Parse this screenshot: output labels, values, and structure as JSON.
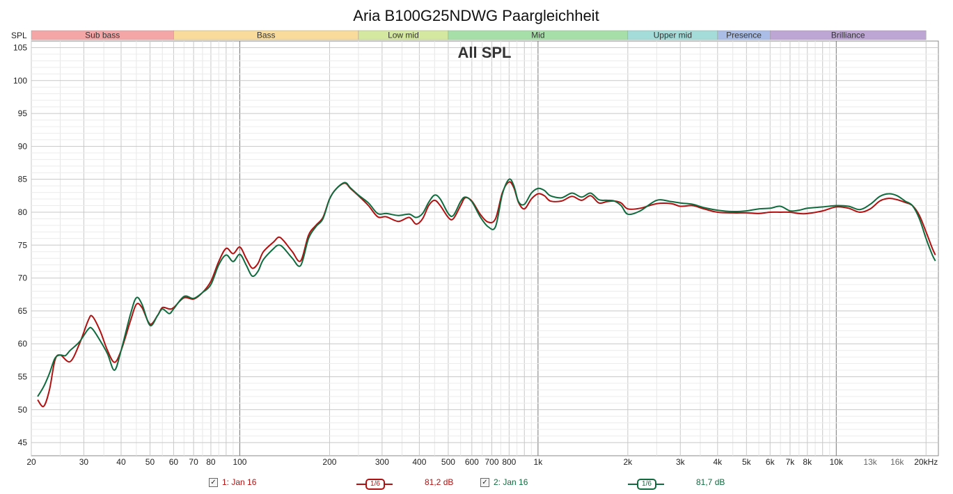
{
  "window": {
    "title": "Aria B100G25NDWG Paargleichheit"
  },
  "chart_data": {
    "type": "line",
    "title": "Aria B100G25NDWG Paargleichheit",
    "overlay_title": "All SPL",
    "ylabel": "SPL",
    "xscale": "log",
    "xlim": [
      20,
      22000
    ],
    "ylim": [
      43,
      106
    ],
    "y_ticks": [
      45,
      50,
      55,
      60,
      65,
      70,
      75,
      80,
      85,
      90,
      95,
      100,
      105
    ],
    "x_ticks": [
      {
        "v": 20,
        "label": "20"
      },
      {
        "v": 30,
        "label": "30"
      },
      {
        "v": 40,
        "label": "40"
      },
      {
        "v": 50,
        "label": "50"
      },
      {
        "v": 60,
        "label": "60"
      },
      {
        "v": 70,
        "label": "70"
      },
      {
        "v": 80,
        "label": "80"
      },
      {
        "v": 100,
        "label": "100"
      },
      {
        "v": 200,
        "label": "200"
      },
      {
        "v": 300,
        "label": "300"
      },
      {
        "v": 400,
        "label": "400"
      },
      {
        "v": 500,
        "label": "500"
      },
      {
        "v": 600,
        "label": "600"
      },
      {
        "v": 700,
        "label": "700"
      },
      {
        "v": 800,
        "label": "800"
      },
      {
        "v": 1000,
        "label": "1k"
      },
      {
        "v": 2000,
        "label": "2k"
      },
      {
        "v": 3000,
        "label": "3k"
      },
      {
        "v": 4000,
        "label": "4k"
      },
      {
        "v": 5000,
        "label": "5k"
      },
      {
        "v": 6000,
        "label": "6k"
      },
      {
        "v": 7000,
        "label": "7k"
      },
      {
        "v": 8000,
        "label": "8k"
      },
      {
        "v": 10000,
        "label": "10k"
      },
      {
        "v": 13000,
        "label": "13k",
        "minor": true
      },
      {
        "v": 16000,
        "label": "16k",
        "minor": true
      },
      {
        "v": 20000,
        "label": "20kHz"
      }
    ],
    "bands": [
      {
        "name": "Sub bass",
        "from": 20,
        "to": 60,
        "color": "#f4a6a6"
      },
      {
        "name": "Bass",
        "from": 60,
        "to": 250,
        "color": "#f9dc9b"
      },
      {
        "name": "Low mid",
        "from": 250,
        "to": 500,
        "color": "#d5e8a0"
      },
      {
        "name": "Mid",
        "from": 500,
        "to": 2000,
        "color": "#a6e0a8"
      },
      {
        "name": "Upper mid",
        "from": 2000,
        "to": 4000,
        "color": "#a3dcd8"
      },
      {
        "name": "Presence",
        "from": 4000,
        "to": 6000,
        "color": "#a9bde6"
      },
      {
        "name": "Brilliance",
        "from": 6000,
        "to": 20000,
        "color": "#bda6d4"
      }
    ],
    "grid": true,
    "series": [
      {
        "name": "1: Jan 16",
        "color": "#b01010",
        "smoothing": "1/6",
        "level": "81,2 dB",
        "points": [
          [
            21,
            51.5
          ],
          [
            22,
            50.5
          ],
          [
            23,
            53
          ],
          [
            24,
            57.5
          ],
          [
            25,
            58.3
          ],
          [
            27,
            57.3
          ],
          [
            29,
            60
          ],
          [
            31,
            63.5
          ],
          [
            32,
            64.2
          ],
          [
            34,
            62
          ],
          [
            36,
            59
          ],
          [
            38,
            57.2
          ],
          [
            40,
            59
          ],
          [
            43,
            63.5
          ],
          [
            45,
            66
          ],
          [
            47,
            65.5
          ],
          [
            50,
            63
          ],
          [
            53,
            64.3
          ],
          [
            55,
            65.5
          ],
          [
            58,
            65.3
          ],
          [
            60,
            65.5
          ],
          [
            65,
            67
          ],
          [
            70,
            66.8
          ],
          [
            75,
            67.8
          ],
          [
            80,
            69.5
          ],
          [
            85,
            72.5
          ],
          [
            90,
            74.5
          ],
          [
            95,
            73.7
          ],
          [
            100,
            74.7
          ],
          [
            105,
            73
          ],
          [
            110,
            71.5
          ],
          [
            115,
            72.2
          ],
          [
            120,
            74
          ],
          [
            130,
            75.5
          ],
          [
            135,
            76.2
          ],
          [
            140,
            75.7
          ],
          [
            150,
            74
          ],
          [
            160,
            72.6
          ],
          [
            170,
            76.5
          ],
          [
            180,
            78
          ],
          [
            190,
            79.2
          ],
          [
            200,
            82
          ],
          [
            210,
            83.5
          ],
          [
            225,
            84.4
          ],
          [
            235,
            83.6
          ],
          [
            250,
            82.5
          ],
          [
            270,
            81
          ],
          [
            290,
            79.3
          ],
          [
            310,
            79.3
          ],
          [
            340,
            78.6
          ],
          [
            370,
            79.2
          ],
          [
            390,
            78.2
          ],
          [
            410,
            79
          ],
          [
            430,
            81
          ],
          [
            450,
            81.8
          ],
          [
            470,
            81
          ],
          [
            500,
            79.2
          ],
          [
            520,
            79
          ],
          [
            550,
            81
          ],
          [
            570,
            82.2
          ],
          [
            600,
            81.7
          ],
          [
            640,
            79.7
          ],
          [
            680,
            78.5
          ],
          [
            720,
            79
          ],
          [
            760,
            83
          ],
          [
            800,
            84.6
          ],
          [
            830,
            83.7
          ],
          [
            860,
            81.5
          ],
          [
            900,
            80.5
          ],
          [
            950,
            82
          ],
          [
            1000,
            82.8
          ],
          [
            1050,
            82.5
          ],
          [
            1100,
            81.7
          ],
          [
            1200,
            81.7
          ],
          [
            1300,
            82.4
          ],
          [
            1400,
            81.8
          ],
          [
            1500,
            82.5
          ],
          [
            1600,
            81.4
          ],
          [
            1700,
            81.6
          ],
          [
            1800,
            81.7
          ],
          [
            1900,
            81.4
          ],
          [
            2000,
            80.5
          ],
          [
            2200,
            80.6
          ],
          [
            2500,
            81.3
          ],
          [
            2800,
            81.3
          ],
          [
            3000,
            80.9
          ],
          [
            3300,
            81
          ],
          [
            3600,
            80.5
          ],
          [
            4000,
            80
          ],
          [
            4500,
            79.9
          ],
          [
            5000,
            79.9
          ],
          [
            5500,
            79.8
          ],
          [
            6000,
            80
          ],
          [
            6500,
            80
          ],
          [
            7000,
            80
          ],
          [
            7500,
            79.8
          ],
          [
            8000,
            79.8
          ],
          [
            9000,
            80.2
          ],
          [
            10000,
            80.8
          ],
          [
            11000,
            80.6
          ],
          [
            12000,
            80
          ],
          [
            13000,
            80.5
          ],
          [
            14000,
            81.7
          ],
          [
            15000,
            82.1
          ],
          [
            16000,
            81.9
          ],
          [
            17000,
            81.5
          ],
          [
            18000,
            81
          ],
          [
            19000,
            79.5
          ],
          [
            20000,
            77
          ],
          [
            21000,
            74.5
          ],
          [
            21500,
            73.5
          ]
        ]
      },
      {
        "name": "2: Jan 16",
        "color": "#0f6b3e",
        "smoothing": "1/6",
        "level": "81,7 dB",
        "points": [
          [
            21,
            52
          ],
          [
            22,
            53.5
          ],
          [
            23,
            55.5
          ],
          [
            24,
            57.8
          ],
          [
            25,
            58.3
          ],
          [
            26,
            58.2
          ],
          [
            27,
            59
          ],
          [
            29,
            60.3
          ],
          [
            31,
            62.2
          ],
          [
            32,
            62.3
          ],
          [
            34,
            60.5
          ],
          [
            36,
            58.5
          ],
          [
            38,
            56
          ],
          [
            40,
            59
          ],
          [
            43,
            64.5
          ],
          [
            45,
            67
          ],
          [
            47,
            66
          ],
          [
            50,
            62.8
          ],
          [
            53,
            64.3
          ],
          [
            55,
            65.3
          ],
          [
            58,
            64.6
          ],
          [
            60,
            65.3
          ],
          [
            65,
            67.2
          ],
          [
            70,
            66.9
          ],
          [
            75,
            67.8
          ],
          [
            80,
            69
          ],
          [
            85,
            72
          ],
          [
            90,
            73.5
          ],
          [
            95,
            72.5
          ],
          [
            100,
            73.6
          ],
          [
            105,
            72
          ],
          [
            110,
            70.3
          ],
          [
            115,
            71
          ],
          [
            120,
            72.8
          ],
          [
            130,
            74.5
          ],
          [
            135,
            75
          ],
          [
            140,
            74.6
          ],
          [
            150,
            73
          ],
          [
            160,
            71.9
          ],
          [
            170,
            76
          ],
          [
            180,
            77.8
          ],
          [
            190,
            79
          ],
          [
            200,
            82
          ],
          [
            210,
            83.5
          ],
          [
            225,
            84.5
          ],
          [
            235,
            83.7
          ],
          [
            250,
            82.6
          ],
          [
            270,
            81.4
          ],
          [
            290,
            79.8
          ],
          [
            310,
            79.8
          ],
          [
            340,
            79.5
          ],
          [
            370,
            79.7
          ],
          [
            390,
            79.2
          ],
          [
            410,
            79.8
          ],
          [
            430,
            81.5
          ],
          [
            450,
            82.6
          ],
          [
            470,
            82
          ],
          [
            500,
            79.8
          ],
          [
            520,
            79.5
          ],
          [
            550,
            81.6
          ],
          [
            570,
            82.3
          ],
          [
            600,
            81.6
          ],
          [
            640,
            79.3
          ],
          [
            680,
            77.8
          ],
          [
            720,
            77.8
          ],
          [
            760,
            82.8
          ],
          [
            800,
            85
          ],
          [
            830,
            84
          ],
          [
            860,
            81.6
          ],
          [
            900,
            81.2
          ],
          [
            950,
            82.9
          ],
          [
            1000,
            83.6
          ],
          [
            1050,
            83.3
          ],
          [
            1100,
            82.5
          ],
          [
            1200,
            82.2
          ],
          [
            1300,
            82.9
          ],
          [
            1400,
            82.3
          ],
          [
            1500,
            82.9
          ],
          [
            1600,
            81.9
          ],
          [
            1700,
            81.8
          ],
          [
            1800,
            81.7
          ],
          [
            1900,
            81
          ],
          [
            2000,
            79.7
          ],
          [
            2200,
            80.2
          ],
          [
            2500,
            81.8
          ],
          [
            2800,
            81.6
          ],
          [
            3000,
            81.4
          ],
          [
            3300,
            81.2
          ],
          [
            3600,
            80.7
          ],
          [
            4000,
            80.3
          ],
          [
            4500,
            80.1
          ],
          [
            5000,
            80.2
          ],
          [
            5500,
            80.5
          ],
          [
            6000,
            80.6
          ],
          [
            6500,
            80.9
          ],
          [
            7000,
            80.2
          ],
          [
            7500,
            80.3
          ],
          [
            8000,
            80.6
          ],
          [
            9000,
            80.8
          ],
          [
            10000,
            81
          ],
          [
            11000,
            80.9
          ],
          [
            12000,
            80.4
          ],
          [
            13000,
            81.2
          ],
          [
            14000,
            82.4
          ],
          [
            15000,
            82.8
          ],
          [
            16000,
            82.5
          ],
          [
            17000,
            81.7
          ],
          [
            18000,
            81
          ],
          [
            19000,
            79
          ],
          [
            20000,
            76
          ],
          [
            21000,
            73.5
          ],
          [
            21500,
            72.6
          ]
        ]
      }
    ]
  },
  "legend": {
    "items": [
      {
        "label": "1: Jan 16",
        "checked": "✓",
        "smoothing": "1/6",
        "level": "81,2 dB",
        "color": "#b01010"
      },
      {
        "label": "2: Jan 16",
        "checked": "✓",
        "smoothing": "1/6",
        "level": "81,7 dB",
        "color": "#0f6b3e"
      }
    ]
  }
}
